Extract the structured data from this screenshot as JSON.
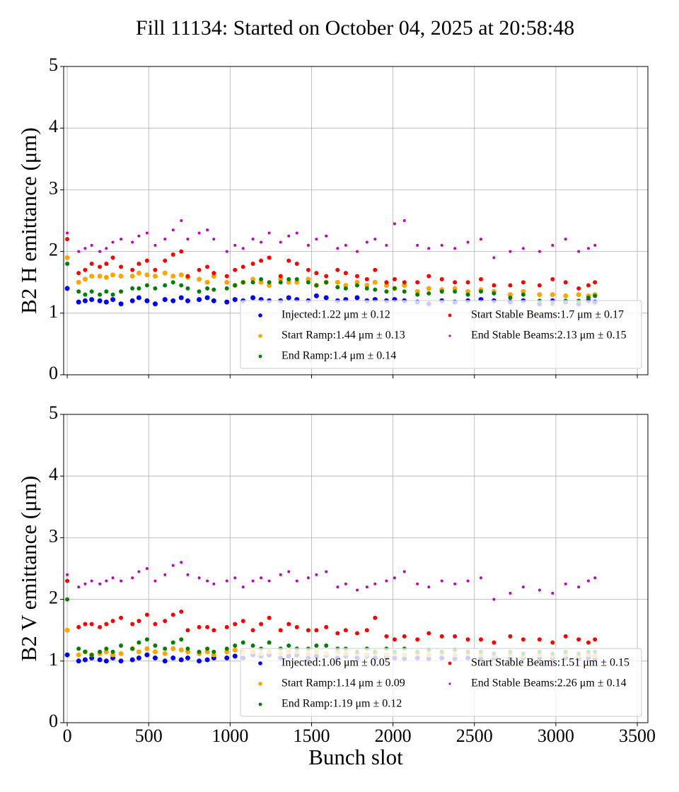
{
  "title": "Fill 11134: Started on October 04, 2025 at 20:58:48",
  "chart_data": [
    {
      "type": "scatter",
      "ylabel": "B2 H emittance (μm)",
      "show_xtick_labels": false,
      "xlim": [
        -22,
        3565
      ],
      "ylim": [
        0,
        5
      ],
      "xticks": [
        0,
        500,
        1000,
        1500,
        2000,
        2500,
        3000,
        3500
      ],
      "yticks": [
        0,
        1,
        2,
        3,
        4,
        5
      ],
      "grid": true,
      "legend": "lower right",
      "x": [
        0,
        70,
        110,
        150,
        200,
        240,
        280,
        330,
        400,
        440,
        490,
        540,
        600,
        650,
        700,
        740,
        810,
        860,
        900,
        980,
        1030,
        1080,
        1140,
        1190,
        1240,
        1310,
        1360,
        1410,
        1480,
        1530,
        1590,
        1660,
        1710,
        1780,
        1840,
        1890,
        1960,
        2010,
        2070,
        2150,
        2220,
        2300,
        2380,
        2460,
        2540,
        2620,
        2720,
        2800,
        2900,
        2980,
        3060,
        3140,
        3200,
        3240
      ],
      "series": [
        {
          "name": "Injected:1.22 μm ± 0.12",
          "color": "#0000ff",
          "marker_size": 3.5,
          "values": [
            1.4,
            1.18,
            1.2,
            1.22,
            1.2,
            1.18,
            1.22,
            1.15,
            1.2,
            1.25,
            1.2,
            1.15,
            1.22,
            1.2,
            1.25,
            1.2,
            1.22,
            1.25,
            1.2,
            1.18,
            1.22,
            1.2,
            1.25,
            1.22,
            1.2,
            1.2,
            1.25,
            1.22,
            1.2,
            1.28,
            1.25,
            1.2,
            1.22,
            1.25,
            1.2,
            1.22,
            1.2,
            1.22,
            1.2,
            1.18,
            1.15,
            1.2,
            1.18,
            1.2,
            1.22,
            1.2,
            1.18,
            1.2,
            1.15,
            1.2,
            1.18,
            1.15,
            1.2,
            1.18
          ]
        },
        {
          "name": "Start Ramp:1.44 μm ± 0.13",
          "color": "#ffa500",
          "marker_size": 3.5,
          "values": [
            1.9,
            1.5,
            1.55,
            1.6,
            1.6,
            1.58,
            1.62,
            1.6,
            1.6,
            1.65,
            1.62,
            1.6,
            1.65,
            1.6,
            1.62,
            1.58,
            1.55,
            1.5,
            1.6,
            1.5,
            1.45,
            1.5,
            1.55,
            1.5,
            1.45,
            1.55,
            1.5,
            1.5,
            1.55,
            1.45,
            1.5,
            1.5,
            1.45,
            1.5,
            1.45,
            1.5,
            1.45,
            1.4,
            1.45,
            1.35,
            1.4,
            1.38,
            1.4,
            1.35,
            1.38,
            1.35,
            1.3,
            1.35,
            1.3,
            1.3,
            1.28,
            1.3,
            1.28,
            1.3
          ]
        },
        {
          "name": "End Ramp:1.4 μm ± 0.14",
          "color": "#008000",
          "marker_size": 3,
          "values": [
            1.8,
            1.35,
            1.3,
            1.35,
            1.3,
            1.35,
            1.3,
            1.35,
            1.4,
            1.4,
            1.45,
            1.4,
            1.45,
            1.5,
            1.45,
            1.4,
            1.35,
            1.4,
            1.38,
            1.4,
            1.45,
            1.5,
            1.5,
            1.55,
            1.5,
            1.5,
            1.55,
            1.55,
            1.5,
            1.45,
            1.5,
            1.42,
            1.4,
            1.45,
            1.4,
            1.38,
            1.35,
            1.4,
            1.35,
            1.3,
            1.32,
            1.35,
            1.35,
            1.3,
            1.35,
            1.32,
            1.25,
            1.3,
            1.2,
            1.15,
            1.2,
            1.2,
            1.25,
            1.28
          ]
        },
        {
          "name": "Start Stable Beams:1.7 μm ± 0.17",
          "color": "#ff0000",
          "marker_size": 3,
          "values": [
            2.2,
            1.65,
            1.7,
            1.8,
            1.75,
            1.8,
            1.9,
            1.75,
            1.7,
            1.8,
            1.85,
            1.7,
            1.85,
            1.95,
            2.0,
            1.6,
            1.7,
            1.75,
            1.65,
            1.6,
            1.7,
            1.75,
            1.8,
            1.85,
            1.9,
            1.6,
            1.85,
            1.8,
            1.7,
            1.65,
            1.6,
            1.7,
            1.65,
            1.6,
            1.55,
            1.7,
            1.5,
            1.55,
            1.5,
            1.5,
            1.6,
            1.55,
            1.5,
            1.5,
            1.55,
            1.45,
            1.45,
            1.5,
            1.45,
            1.55,
            1.5,
            1.4,
            1.45,
            1.5
          ]
        },
        {
          "name": "End Stable Beams:2.13 μm ± 0.15",
          "color": "#bf00bf",
          "marker_size": 2,
          "values": [
            2.3,
            2.0,
            2.05,
            2.1,
            2.0,
            2.05,
            2.15,
            2.2,
            2.15,
            2.25,
            2.3,
            2.1,
            2.2,
            2.35,
            2.5,
            2.2,
            2.3,
            2.35,
            2.2,
            2.0,
            2.1,
            2.05,
            2.2,
            2.15,
            2.3,
            2.15,
            2.25,
            2.3,
            2.1,
            2.2,
            2.25,
            2.05,
            2.1,
            2.0,
            2.15,
            2.2,
            2.1,
            2.45,
            2.5,
            2.1,
            2.05,
            2.1,
            2.05,
            2.15,
            2.2,
            1.9,
            2.0,
            2.05,
            2.0,
            2.1,
            2.2,
            2.0,
            2.05,
            2.1
          ]
        }
      ]
    },
    {
      "type": "scatter",
      "ylabel": "B2 V emittance (μm)",
      "xlabel": "Bunch slot",
      "show_xtick_labels": true,
      "xlim": [
        -22,
        3565
      ],
      "ylim": [
        0,
        5
      ],
      "xticks": [
        0,
        500,
        1000,
        1500,
        2000,
        2500,
        3000,
        3500
      ],
      "yticks": [
        0,
        1,
        2,
        3,
        4,
        5
      ],
      "grid": true,
      "legend": "lower right",
      "x": [
        0,
        70,
        110,
        150,
        200,
        240,
        280,
        330,
        400,
        440,
        490,
        540,
        600,
        650,
        700,
        740,
        810,
        860,
        900,
        980,
        1030,
        1080,
        1140,
        1190,
        1240,
        1310,
        1360,
        1410,
        1480,
        1530,
        1590,
        1660,
        1710,
        1780,
        1840,
        1890,
        1960,
        2010,
        2070,
        2150,
        2220,
        2300,
        2380,
        2460,
        2540,
        2620,
        2720,
        2800,
        2900,
        2980,
        3060,
        3140,
        3200,
        3240
      ],
      "series": [
        {
          "name": "Injected:1.06 μm ± 0.05",
          "color": "#0000ff",
          "marker_size": 3.5,
          "values": [
            1.1,
            1.0,
            1.02,
            1.05,
            1.02,
            1.0,
            1.05,
            1.0,
            1.02,
            1.05,
            1.1,
            1.05,
            1.0,
            1.05,
            1.02,
            1.05,
            1.0,
            1.02,
            1.05,
            1.05,
            1.08,
            1.05,
            1.1,
            1.08,
            1.1,
            1.05,
            1.08,
            1.1,
            1.05,
            1.08,
            1.1,
            1.05,
            1.08,
            1.05,
            1.08,
            1.05,
            1.06,
            1.05,
            1.04,
            1.05,
            1.04,
            1.05,
            1.04,
            1.05,
            1.04,
            1.05,
            1.04,
            1.05,
            1.04,
            1.05,
            1.05,
            1.04,
            1.05,
            1.04
          ]
        },
        {
          "name": "Start Ramp:1.14 μm ± 0.09",
          "color": "#ffa500",
          "marker_size": 3.5,
          "values": [
            1.5,
            1.1,
            1.15,
            1.1,
            1.12,
            1.15,
            1.1,
            1.12,
            1.2,
            1.15,
            1.2,
            1.15,
            1.12,
            1.2,
            1.18,
            1.15,
            1.12,
            1.15,
            1.1,
            1.15,
            1.18,
            1.15,
            1.15,
            1.12,
            1.15,
            1.12,
            1.15,
            1.15,
            1.12,
            1.15,
            1.12,
            1.15,
            1.12,
            1.12,
            1.1,
            1.12,
            1.1,
            1.12,
            1.1,
            1.12,
            1.1,
            1.12,
            1.1,
            1.12,
            1.1,
            1.08,
            1.1,
            1.08,
            1.1,
            1.08,
            1.1,
            1.08,
            1.1,
            1.08
          ]
        },
        {
          "name": "End Ramp:1.19 μm ± 0.12",
          "color": "#008000",
          "marker_size": 3,
          "values": [
            2.0,
            1.2,
            1.15,
            1.1,
            1.15,
            1.2,
            1.15,
            1.25,
            1.2,
            1.3,
            1.35,
            1.25,
            1.2,
            1.3,
            1.35,
            1.2,
            1.15,
            1.2,
            1.15,
            1.2,
            1.25,
            1.3,
            1.25,
            1.2,
            1.3,
            1.2,
            1.25,
            1.2,
            1.2,
            1.25,
            1.25,
            1.2,
            1.2,
            1.15,
            1.2,
            1.15,
            1.2,
            1.15,
            1.2,
            1.15,
            1.18,
            1.15,
            1.18,
            1.15,
            1.15,
            1.12,
            1.15,
            1.12,
            1.15,
            1.12,
            1.15,
            1.12,
            1.15,
            1.15
          ]
        },
        {
          "name": "Start Stable Beams:1.51 μm ± 0.15",
          "color": "#ff0000",
          "marker_size": 3,
          "values": [
            2.3,
            1.55,
            1.6,
            1.6,
            1.55,
            1.6,
            1.65,
            1.7,
            1.6,
            1.65,
            1.75,
            1.6,
            1.65,
            1.75,
            1.8,
            1.5,
            1.55,
            1.55,
            1.5,
            1.55,
            1.6,
            1.65,
            1.5,
            1.6,
            1.7,
            1.5,
            1.6,
            1.55,
            1.5,
            1.5,
            1.55,
            1.45,
            1.5,
            1.45,
            1.5,
            1.7,
            1.4,
            1.35,
            1.4,
            1.35,
            1.45,
            1.4,
            1.4,
            1.35,
            1.35,
            1.3,
            1.4,
            1.35,
            1.35,
            1.3,
            1.4,
            1.35,
            1.3,
            1.35
          ]
        },
        {
          "name": "End Stable Beams:2.26 μm ± 0.14",
          "color": "#bf00bf",
          "marker_size": 2,
          "values": [
            2.4,
            2.2,
            2.25,
            2.3,
            2.25,
            2.3,
            2.35,
            2.3,
            2.35,
            2.45,
            2.5,
            2.3,
            2.4,
            2.55,
            2.6,
            2.4,
            2.35,
            2.3,
            2.25,
            2.3,
            2.35,
            2.2,
            2.3,
            2.35,
            2.3,
            2.4,
            2.45,
            2.3,
            2.35,
            2.4,
            2.45,
            2.2,
            2.25,
            2.15,
            2.2,
            2.25,
            2.3,
            2.35,
            2.45,
            2.25,
            2.2,
            2.3,
            2.25,
            2.3,
            2.35,
            2.0,
            2.1,
            2.2,
            2.15,
            2.1,
            2.25,
            2.2,
            2.3,
            2.35
          ]
        }
      ]
    }
  ]
}
